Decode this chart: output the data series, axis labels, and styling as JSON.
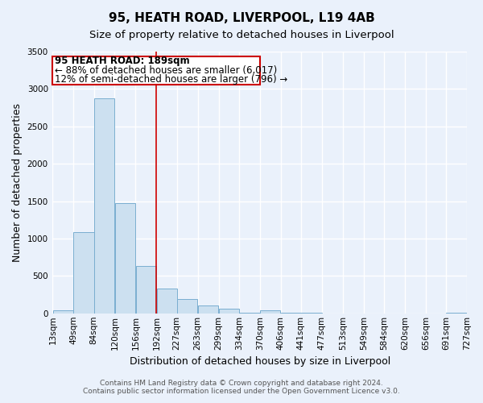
{
  "title": "95, HEATH ROAD, LIVERPOOL, L19 4AB",
  "subtitle": "Size of property relative to detached houses in Liverpool",
  "xlabel": "Distribution of detached houses by size in Liverpool",
  "ylabel": "Number of detached properties",
  "bin_edges": [
    13,
    49,
    84,
    120,
    156,
    192,
    227,
    263,
    299,
    334,
    370,
    406,
    441,
    477,
    513,
    549,
    584,
    620,
    656,
    691,
    727
  ],
  "bin_labels": [
    "13sqm",
    "49sqm",
    "84sqm",
    "120sqm",
    "156sqm",
    "192sqm",
    "227sqm",
    "263sqm",
    "299sqm",
    "334sqm",
    "370sqm",
    "406sqm",
    "441sqm",
    "477sqm",
    "513sqm",
    "549sqm",
    "584sqm",
    "620sqm",
    "656sqm",
    "691sqm",
    "727sqm"
  ],
  "bar_heights": [
    40,
    1090,
    2870,
    1470,
    630,
    330,
    195,
    100,
    60,
    10,
    45,
    10,
    10,
    0,
    0,
    0,
    0,
    0,
    0,
    10
  ],
  "bar_color": "#cce0f0",
  "bar_edge_color": "#7aaed0",
  "vline_x": 192,
  "vline_color": "#cc0000",
  "annotation_title": "95 HEATH ROAD: 189sqm",
  "annotation_line1": "← 88% of detached houses are smaller (6,017)",
  "annotation_line2": "12% of semi-detached houses are larger (796) →",
  "annotation_box_color": "#cc0000",
  "annotation_box_facecolor": "#ffffff",
  "ylim": [
    0,
    3500
  ],
  "yticks": [
    0,
    500,
    1000,
    1500,
    2000,
    2500,
    3000,
    3500
  ],
  "footer_line1": "Contains HM Land Registry data © Crown copyright and database right 2024.",
  "footer_line2": "Contains public sector information licensed under the Open Government Licence v3.0.",
  "background_color": "#eaf1fb",
  "plot_background": "#eaf1fb",
  "grid_color": "#ffffff",
  "title_fontsize": 11,
  "subtitle_fontsize": 9.5,
  "axis_label_fontsize": 9,
  "tick_fontsize": 7.5,
  "annotation_fontsize": 8.5,
  "footer_fontsize": 6.5
}
